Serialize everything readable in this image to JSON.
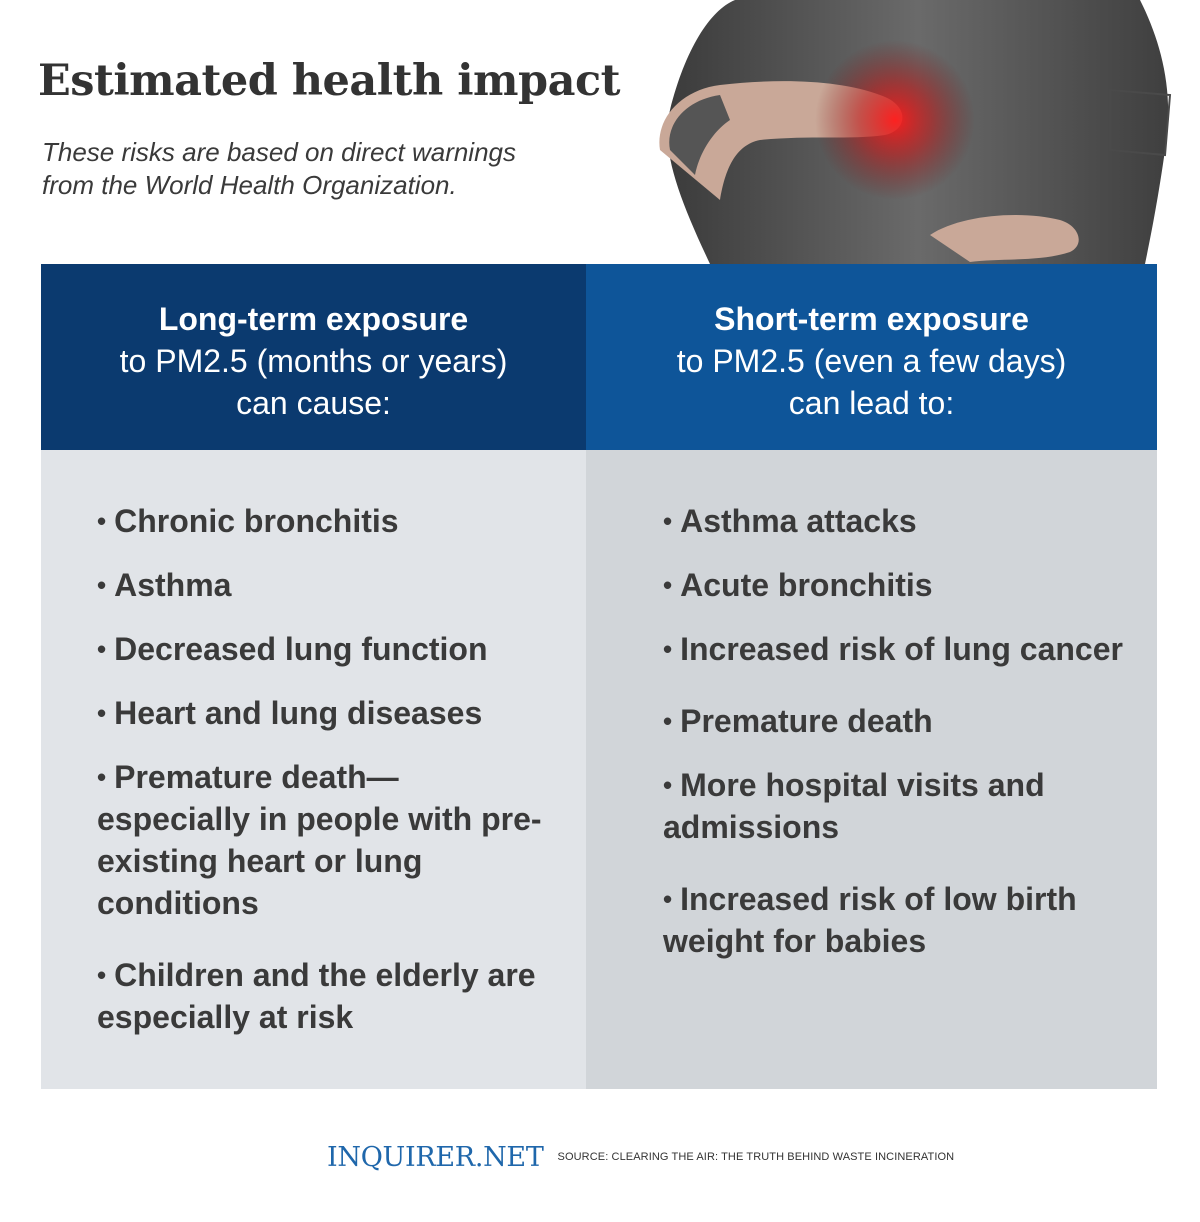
{
  "header": {
    "title": "Estimated health impact",
    "subtitle_lines": [
      "These risks are based on direct warnings",
      "from the World Health Organization."
    ]
  },
  "colors": {
    "long_term_header": "#0b3a6f",
    "short_term_header": "#0e5599",
    "long_term_body": "#e1e4e8",
    "short_term_body": "#d1d5d9",
    "brand": "#1f67ab"
  },
  "long_term": {
    "heading": "Long-term exposure",
    "subheading_lines": [
      "to PM2.5 (months or years)",
      "can cause:"
    ],
    "items": [
      "Chronic bronchitis",
      "Asthma",
      "Decreased lung function",
      "Heart and lung diseases",
      "Premature death—especially in people with pre-existing heart or lung conditions",
      "Children and the elderly are especially at risk"
    ]
  },
  "short_term": {
    "heading": "Short-term exposure",
    "subheading_lines": [
      "to PM2.5 (even a few days)",
      "can lead to:"
    ],
    "items": [
      "Asthma attacks",
      "Acute bronchitis",
      "Increased risk of lung cancer",
      "Premature death",
      "More hospital visits and admissions",
      "Increased risk of low birth weight for babies"
    ]
  },
  "bullet_symbol": "•",
  "footer": {
    "brand": "INQUIRER.NET",
    "source": "SOURCE: CLEARING THE AIR: THE TRUTH BEHIND WASTE INCINERATION"
  }
}
